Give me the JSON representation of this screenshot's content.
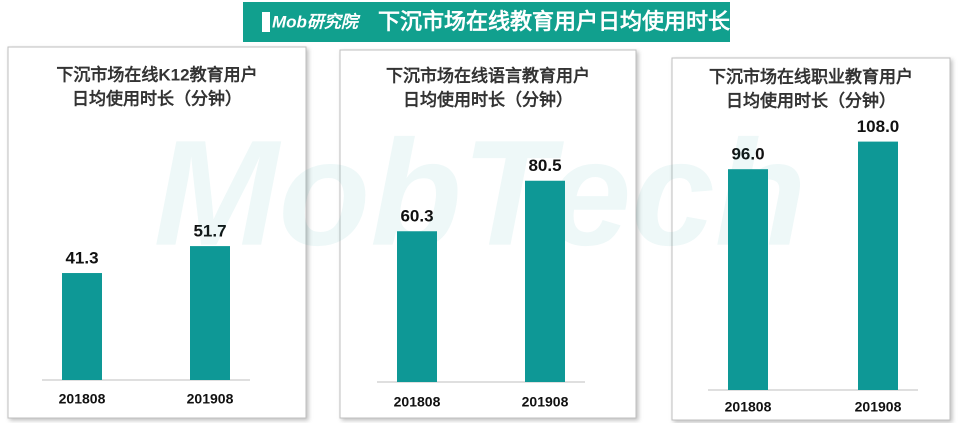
{
  "header": {
    "logo": "Mob研究院",
    "title": "下沉市场在线教育用户日均使用时长"
  },
  "watermark": "MobTech",
  "chart_data": [
    {
      "type": "bar",
      "title": [
        "下沉市场在线K12教育用户",
        "日均使用时长（分钟）"
      ],
      "categories": [
        "201808",
        "201908"
      ],
      "values": [
        41.3,
        51.7
      ],
      "color": "#0e9896"
    },
    {
      "type": "bar",
      "title": [
        "下沉市场在线语言教育用户",
        "日均使用时长（分钟）"
      ],
      "categories": [
        "201808",
        "201908"
      ],
      "values": [
        60.3,
        80.5
      ],
      "color": "#0e9896"
    },
    {
      "type": "bar",
      "title": [
        "下沉市场在线职业教育用户",
        "日均使用时长（分钟）"
      ],
      "categories": [
        "201808",
        "201908"
      ],
      "values": [
        96.0,
        108.0
      ],
      "value_labels": [
        "96.0",
        "108.0"
      ],
      "color": "#0e9896"
    }
  ]
}
